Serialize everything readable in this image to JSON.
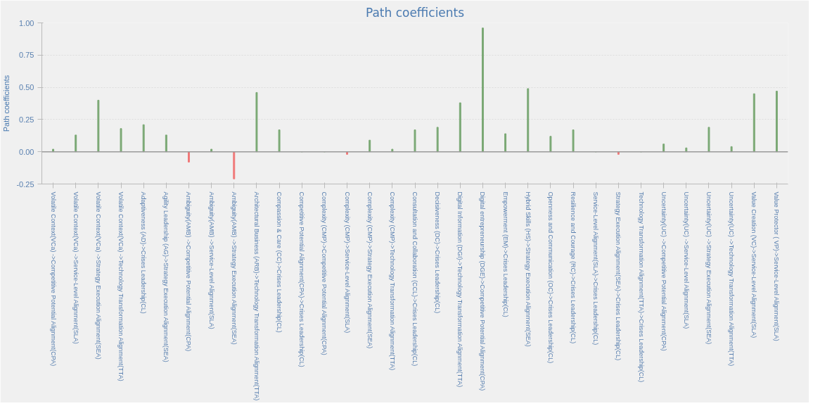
{
  "chart_data": {
    "type": "bar",
    "title": "Path coefficients",
    "ylabel": "Path coefficients",
    "categories": [
      "Volatile Context(VCa) ->Competitive Potential Alignment(CPA)",
      "Volatile Context(VCa) ->Service-Level Alignment(SLA)",
      "Volatile Context(VCa) ->Strategy Execution Alignment(SEA)",
      "Volatile Context(VCa) ->Technology Transformation Alignment(TTA)",
      "Adaptiveness (AD)->Crises Leadership(CL)",
      "Agility Leadership (AG)->Strategy Execution Alignment(SEA)",
      "Ambiguity(AMB) ->Competitive Potential Alignment(CPA)",
      "Ambiguity(AMB) ->Service-Level Alignment(SLA)",
      "Ambiguity(AMB) ->Strategy Execution Alignment(SEA)",
      "Architectural Business (ARB)->Technology Transformation Alignment(TTA)",
      "Compassion & Care (CC)->Crises Leadership(CL)",
      "Competitive Potential Alignment(CPA)->Crises Leadership(CL)",
      "Complexity (CMP)->Competitive Potential Alignment(CPA)",
      "Complexity (CMP)->Service-Level Alignment(SLA)",
      "Complexity (CMP)->Strategy Execution Alignment(SEA)",
      "Complexity (CMP)->Technology Transformation Alignment(TTA)",
      "Consultation and Collaboration (CCL)->Crises Leadership(CL)",
      "Decisiveness (DC)->Crises Leadership(CL)",
      "Digital Information (DGI)->Technology Transformation Alignment(TTA)",
      "Digital entrepreneurship (DGE)->Competitive Potential Alignment(CPA)",
      "Empowerment (EM)->Crises Leadership(CL)",
      "Hybrid Skills (HS)->Strategy Execution Alignment(SEA)",
      "Openness and Communication (OC)->Crises Leadership(CL)",
      "Resilience and Courage (RC)->Crises Leadership(CL)",
      "Service-Level Alignment(SLA)->Crises Leadership(CL)",
      "Strategy Execution Alignment(SEA)->Crises Leadership(CL)",
      "Technology Transformation Alignment(TTA)->Crises Leadership(CL)",
      "Uncertainty(UC) ->Competitive Potential Alignment(CPA)",
      "Uncertainty(UC) ->Service-Level Alignment(SLA)",
      "Uncertainty(UC) ->Strategy Execution Alignment(SEA)",
      "Uncertainty(UC) ->Technology Transformation Alignment(TTA)",
      "Value Creation (VC)->Service-Level Alignment(SLA)",
      "Value Protector ( VP)->Service-Level Alignment(SLA)"
    ],
    "values": [
      0.02,
      0.13,
      0.4,
      0.18,
      0.21,
      0.13,
      -0.08,
      0.02,
      -0.21,
      0.46,
      0.17,
      0.0,
      0.0,
      -0.02,
      0.09,
      0.02,
      0.17,
      0.19,
      0.38,
      0.96,
      0.14,
      0.49,
      0.12,
      0.17,
      0.0,
      -0.02,
      0.0,
      0.06,
      0.03,
      0.19,
      0.04,
      0.45,
      0.47
    ],
    "colors": [
      "#7aa874",
      "#7aa874",
      "#7aa874",
      "#7aa874",
      "#7aa874",
      "#7aa874",
      "#f07878",
      "#7aa874",
      "#f07878",
      "#7aa874",
      "#7aa874",
      "#7aa874",
      "#7aa874",
      "#f07878",
      "#7aa874",
      "#7aa874",
      "#7aa874",
      "#7aa874",
      "#7aa874",
      "#7aa874",
      "#7aa874",
      "#7aa874",
      "#7aa874",
      "#7aa874",
      "#7aa874",
      "#f07878",
      "#7aa874",
      "#7aa874",
      "#7aa874",
      "#7aa874",
      "#7aa874",
      "#7aa874",
      "#7aa874"
    ],
    "ylim": [
      -0.25,
      1.0
    ],
    "yticks": [
      {
        "value": -0.25,
        "label": "-0.25"
      },
      {
        "value": 0,
        "label": "0.00"
      },
      {
        "value": 0.25,
        "label": "0.25"
      },
      {
        "value": 0.5,
        "label": "0.50"
      },
      {
        "value": 0.75,
        "label": "0.75"
      },
      {
        "value": 1.0,
        "label": "1.00"
      }
    ],
    "ref_lines": [
      {
        "axis": "y",
        "value": 0,
        "color": "#999999"
      }
    ],
    "grid": "y"
  }
}
